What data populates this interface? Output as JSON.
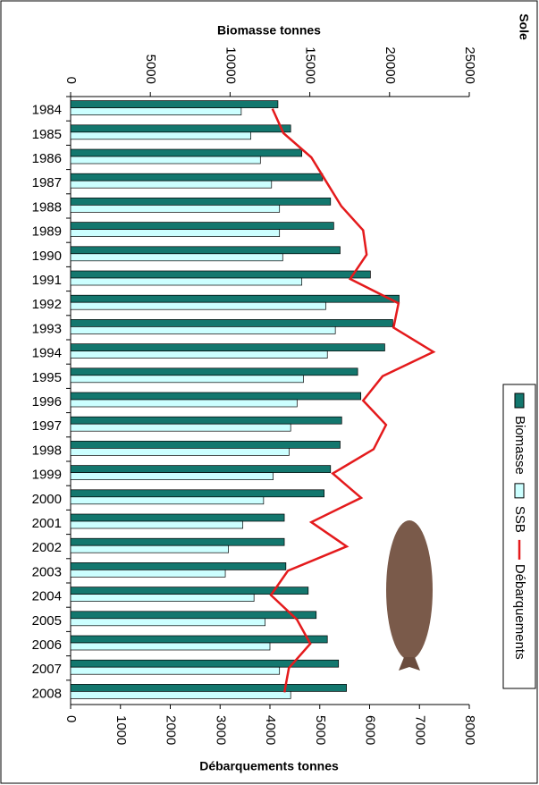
{
  "chart_data": {
    "type": "bar",
    "title": "Sole",
    "xlabel": "Biomasse tonnes",
    "x2label": "Débarquements tonnes",
    "categories": [
      "1984",
      "1985",
      "1986",
      "1987",
      "1988",
      "1989",
      "1990",
      "1991",
      "1992",
      "1993",
      "1994",
      "1995",
      "1996",
      "1997",
      "1998",
      "1999",
      "2000",
      "2001",
      "2002",
      "2003",
      "2004",
      "2005",
      "2006",
      "2007",
      "2008"
    ],
    "series": [
      {
        "name": "Biomasse",
        "color": "#13776e",
        "values": [
          13000,
          13800,
          14500,
          15800,
          16300,
          16500,
          16900,
          18800,
          20600,
          20200,
          19700,
          18000,
          18200,
          17000,
          16900,
          16300,
          15900,
          13400,
          13400,
          13500,
          14900,
          15400,
          16100,
          16800,
          17300
        ]
      },
      {
        "name": "SSB",
        "color": "#ccffff",
        "values": [
          10700,
          11300,
          11900,
          12600,
          13100,
          13100,
          13300,
          14500,
          16000,
          16600,
          16100,
          14600,
          14200,
          13800,
          13700,
          12700,
          12100,
          10800,
          9900,
          9700,
          11500,
          12200,
          12500,
          13100,
          13800
        ]
      },
      {
        "name": "Débarquements",
        "color": "#e41a1c",
        "type": "line",
        "axis": "x2",
        "values": [
          4050,
          4270,
          4830,
          5130,
          5430,
          5870,
          5940,
          5610,
          6580,
          6480,
          7280,
          6260,
          5870,
          6330,
          6080,
          5260,
          5830,
          4830,
          5540,
          4360,
          4020,
          4540,
          4810,
          4380,
          4290
        ]
      }
    ],
    "xlim": [
      0,
      25000
    ],
    "xticks": [
      0,
      5000,
      10000,
      15000,
      20000,
      25000
    ],
    "x2lim": [
      0,
      8000
    ],
    "x2ticks": [
      0,
      1000,
      2000,
      3000,
      4000,
      5000,
      6000,
      7000,
      8000
    ],
    "legend": "right"
  }
}
